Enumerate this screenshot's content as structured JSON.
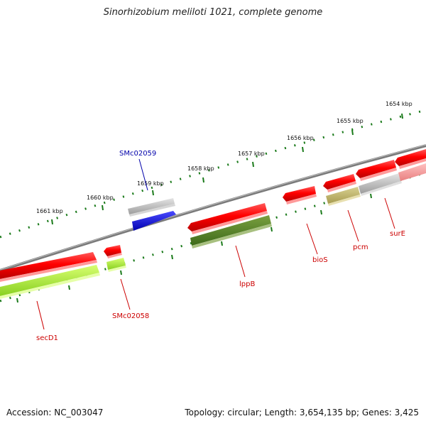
{
  "title": "Sinorhizobium meliloti 1021, complete genome",
  "footer": {
    "accession": "Accession: NC_003047",
    "summary": "Topology: circular; Length: 3,654,135 bp; Genes: 3,425"
  },
  "colors": {
    "backbone": "#8c8c8c",
    "ticks": "#1a7a1a",
    "label_red": "#cc0000",
    "label_blue": "#0000aa"
  },
  "ticks": [
    "1661 kbp",
    "1660 kbp",
    "1659 kbp",
    "1658 kbp",
    "1657 kbp",
    "1656 kbp",
    "1655 kbp",
    "1654 kbp"
  ],
  "genes": [
    {
      "name": "secD1",
      "color": "red"
    },
    {
      "name": "SMc02058",
      "color": "red"
    },
    {
      "name": "SMc02059",
      "color": "blue"
    },
    {
      "name": "lppB",
      "color": "red"
    },
    {
      "name": "bioS",
      "color": "red"
    },
    {
      "name": "pcm",
      "color": "red"
    },
    {
      "name": "surE",
      "color": "red"
    }
  ]
}
